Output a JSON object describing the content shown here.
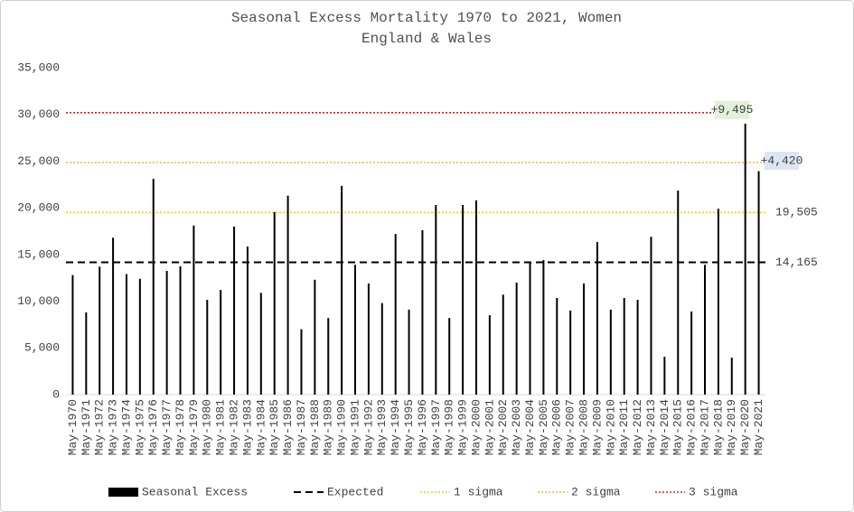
{
  "chart_data": {
    "type": "bar",
    "title": "Seasonal Excess Mortality 1970 to 2021, Women",
    "subtitle": "England & Wales",
    "categories": [
      "May-1970",
      "May-1971",
      "May-1972",
      "May-1973",
      "May-1974",
      "May-1975",
      "May-1976",
      "May-1977",
      "May-1978",
      "May-1979",
      "May-1980",
      "May-1981",
      "May-1982",
      "May-1983",
      "May-1984",
      "May-1985",
      "May-1986",
      "May-1987",
      "May-1988",
      "May-1989",
      "May-1990",
      "May-1991",
      "May-1992",
      "May-1993",
      "May-1994",
      "May-1995",
      "May-1996",
      "May-1997",
      "May-1998",
      "May-1999",
      "May-2000",
      "May-2001",
      "May-2002",
      "May-2003",
      "May-2004",
      "May-2005",
      "May-2006",
      "May-2007",
      "May-2008",
      "May-2009",
      "May-2010",
      "May-2011",
      "May-2012",
      "May-2013",
      "May-2014",
      "May-2015",
      "May-2016",
      "May-2017",
      "May-2018",
      "May-2019",
      "May-2020",
      "May-2021"
    ],
    "series": [
      {
        "name": "Seasonal Excess",
        "color": "#000000",
        "values": [
          12800,
          8800,
          13700,
          16800,
          12900,
          12400,
          23100,
          13250,
          13750,
          18100,
          10150,
          11200,
          18000,
          15850,
          10900,
          19550,
          21300,
          7000,
          12300,
          8200,
          22350,
          13900,
          11900,
          9800,
          17200,
          9100,
          17600,
          20300,
          8200,
          20300,
          20800,
          8500,
          10700,
          12000,
          14100,
          14400,
          10350,
          9000,
          11900,
          16350,
          9100,
          10350,
          10150,
          16900,
          4050,
          21850,
          8900,
          13900,
          19900,
          3950,
          29000,
          23925
        ]
      }
    ],
    "reference_lines": [
      {
        "name": "Expected",
        "value": 14165,
        "value_label": "14,165",
        "color": "#000000",
        "style": "dashed"
      },
      {
        "name": "1 sigma",
        "value": 19505,
        "value_label": "19,505",
        "color": "#e8c000",
        "style": "dotted"
      },
      {
        "name": "2 sigma",
        "value": 24845,
        "color": "#f0a030",
        "style": "dotted"
      },
      {
        "name": "3 sigma",
        "value": 30185,
        "color": "#c00000",
        "style": "dotted"
      }
    ],
    "annotations": [
      {
        "label": "+9,495",
        "value": 9495,
        "line": "3 sigma",
        "color": "#e2efda"
      },
      {
        "label": "+4,420",
        "value": 4420,
        "line": "2 sigma",
        "color": "#dce6f2"
      }
    ],
    "ylim": [
      0,
      35000
    ],
    "yticks": [
      0,
      {
        "value": 5000,
        "label": "5,000"
      },
      {
        "value": 10000,
        "label": "10,000"
      },
      {
        "value": 15000,
        "label": "15,000"
      },
      {
        "value": 20000,
        "label": "20,000"
      },
      {
        "value": 25000,
        "label": "25,000"
      },
      {
        "value": 30000,
        "label": "30,000"
      },
      {
        "value": 35000,
        "label": "35,000"
      }
    ],
    "grid": false,
    "legend": "bottom"
  }
}
